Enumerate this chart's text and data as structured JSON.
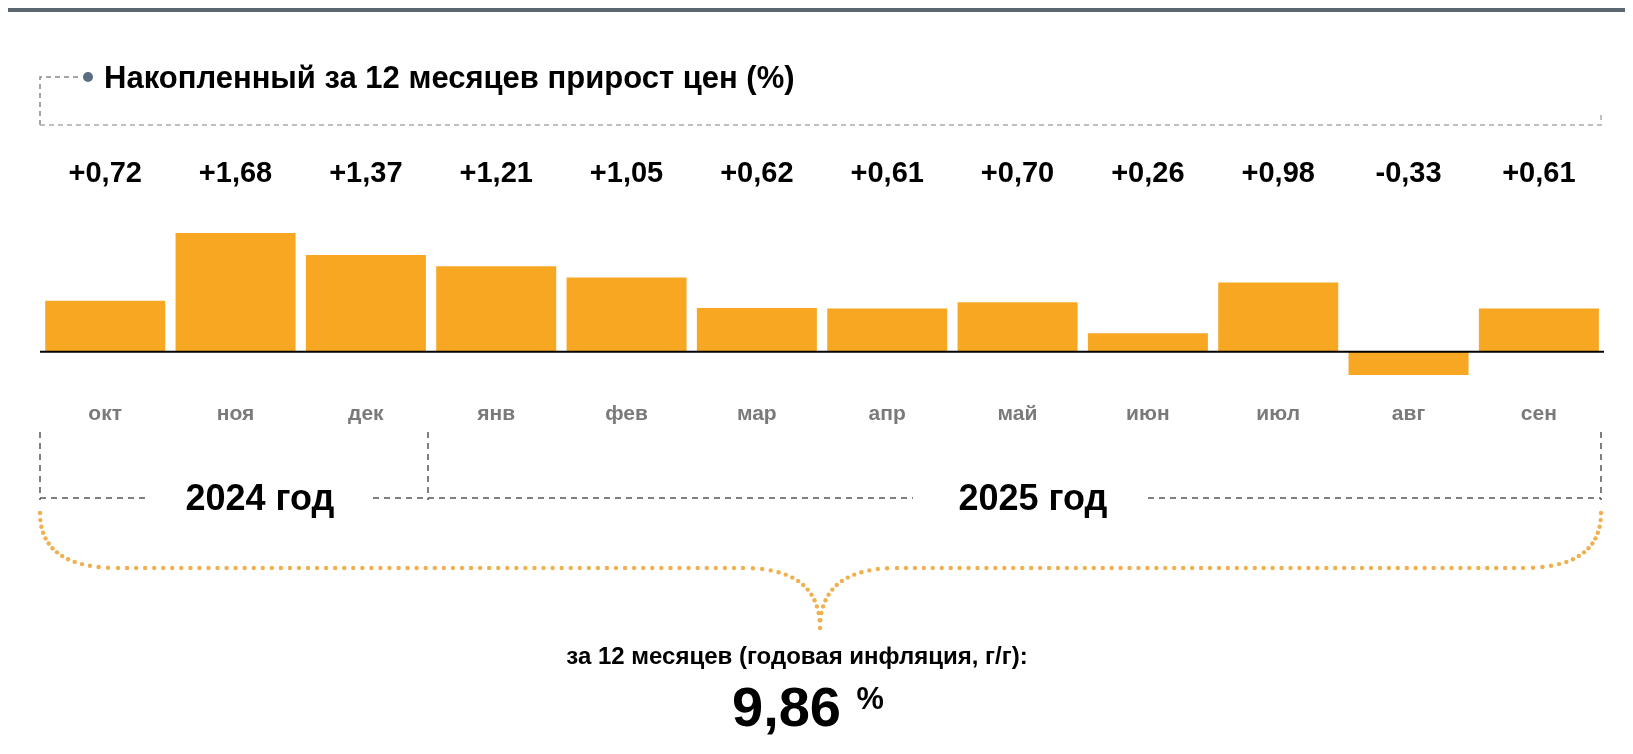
{
  "chart_data": {
    "type": "bar",
    "title": "Накопленный за 12 месяцев прирост цен (%)",
    "categories": [
      "окт",
      "ноя",
      "дек",
      "янв",
      "фев",
      "мар",
      "апр",
      "май",
      "июн",
      "июл",
      "авг",
      "сен"
    ],
    "values": [
      0.72,
      1.68,
      1.37,
      1.21,
      1.05,
      0.62,
      0.61,
      0.7,
      0.26,
      0.98,
      -0.33,
      0.61
    ],
    "value_labels": [
      "+0,72",
      "+1,68",
      "+1,37",
      "+1,21",
      "+1,05",
      "+0,62",
      "+0,61",
      "+0,70",
      "+0,26",
      "+0,98",
      "-0,33",
      "+0,61"
    ],
    "color": "#f8a723",
    "annotations": [
      "2024 год",
      "2025 год",
      "за 12 месяцев (годовая инфляция, г/г):",
      "9,86 $^{%}$"
    ]
  }
}
